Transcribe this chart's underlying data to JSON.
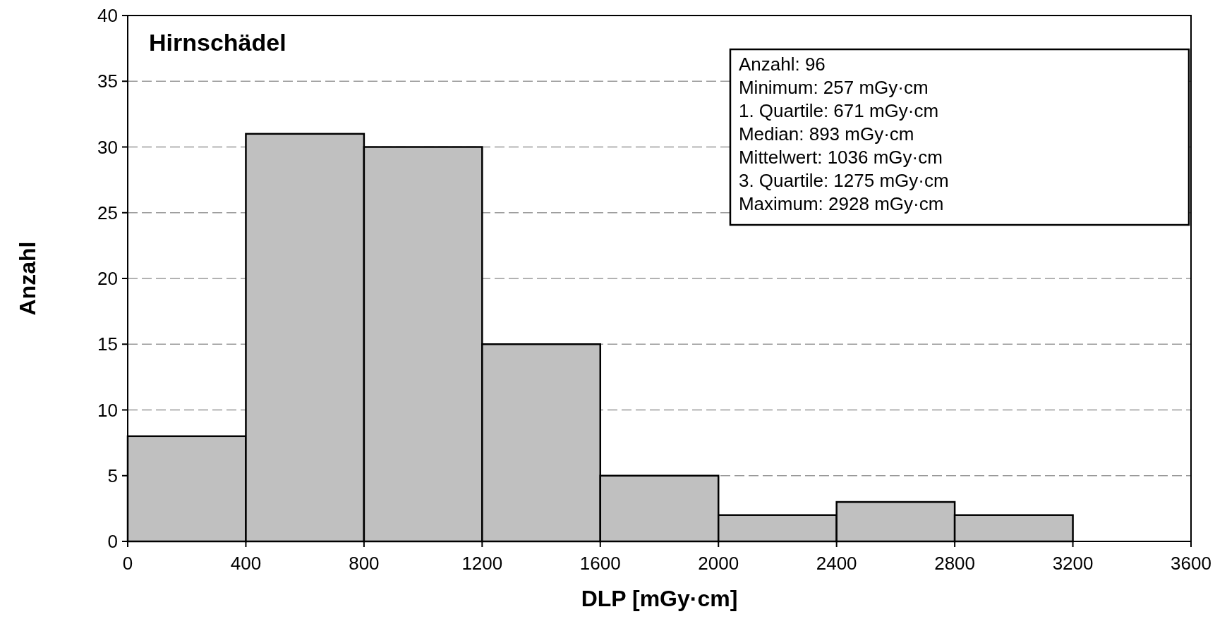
{
  "chart_data": {
    "type": "histogram",
    "title": "Hirnschädel",
    "xlabel": "DLP [mGy·cm]",
    "ylabel": "Anzahl",
    "bins": [
      0,
      400,
      800,
      1200,
      1600,
      2000,
      2400,
      2800,
      3200
    ],
    "values": [
      8,
      31,
      30,
      15,
      5,
      2,
      3,
      2
    ],
    "color": "#c0c0c0",
    "xlim": [
      0,
      3600
    ],
    "xticks": [
      0,
      400,
      800,
      1200,
      1600,
      2000,
      2400,
      2800,
      3200,
      3600
    ],
    "ylim": [
      0,
      40
    ],
    "yticks": [
      0,
      5,
      10,
      15,
      20,
      25,
      30,
      35,
      40
    ],
    "grid": "y",
    "annotations": [
      "Anzahl: 96",
      "Minimum: 257 mGy·cm",
      "1. Quartile: 671 mGy·cm",
      "Median: 893 mGy·cm",
      "Mittelwert: 1036 mGy·cm",
      "3. Quartile: 1275 mGy·cm",
      "Maximum: 2928 mGy·cm"
    ]
  }
}
